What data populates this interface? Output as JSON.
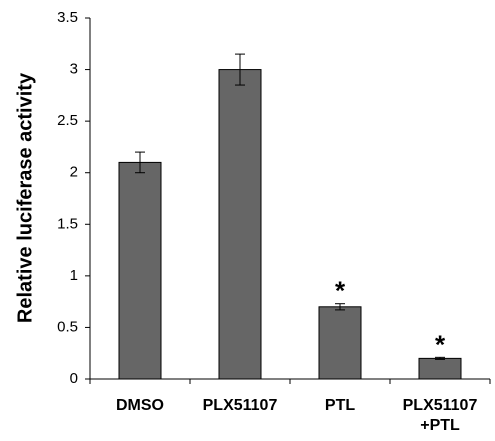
{
  "chart_data": {
    "type": "bar",
    "title": "",
    "xlabel": "",
    "ylabel": "Relative luciferase activity",
    "categories": [
      [
        "DMSO"
      ],
      [
        "PLX51107"
      ],
      [
        "PTL"
      ],
      [
        "PLX51107",
        "+PTL"
      ]
    ],
    "values": [
      2.1,
      3.0,
      0.7,
      0.2
    ],
    "error": [
      0.1,
      0.15,
      0.03,
      0.01
    ],
    "significance": [
      "",
      "",
      "*",
      "*"
    ],
    "ylim": [
      0,
      3.5
    ],
    "yticks": [
      "0",
      "0.5",
      "1",
      "1.5",
      "2",
      "2.5",
      "3",
      "3.5"
    ],
    "grid": false,
    "legend": "none",
    "colors": {
      "bar_fill": "#666666",
      "bar_stroke": "#000000",
      "axis": "#000000",
      "text": "#000000"
    }
  }
}
